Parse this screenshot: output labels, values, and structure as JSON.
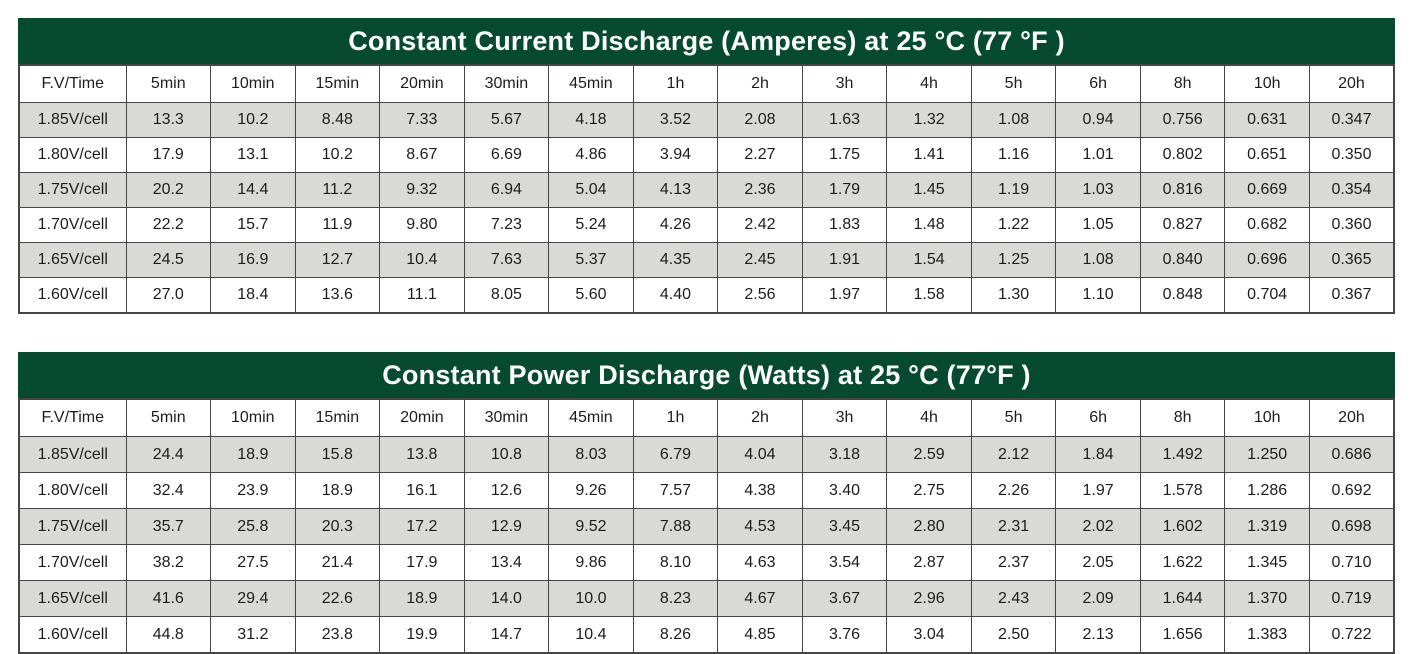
{
  "colors": {
    "header_green": "#064a2f",
    "title_text": "#ffffff",
    "stripe_gray": "#d9d9d5",
    "border": "#454545",
    "cell_text": "#1c1c1c"
  },
  "tables": [
    {
      "title": "Constant Current Discharge (Amperes) at 25 °C (77 °F )",
      "columns": [
        "F.V/Time",
        "5min",
        "10min",
        "15min",
        "20min",
        "30min",
        "45min",
        "1h",
        "2h",
        "3h",
        "4h",
        "5h",
        "6h",
        "8h",
        "10h",
        "20h"
      ],
      "rows": [
        {
          "label": "1.85V/cell",
          "values": [
            "13.3",
            "10.2",
            "8.48",
            "7.33",
            "5.67",
            "4.18",
            "3.52",
            "2.08",
            "1.63",
            "1.32",
            "1.08",
            "0.94",
            "0.756",
            "0.631",
            "0.347"
          ]
        },
        {
          "label": "1.80V/cell",
          "values": [
            "17.9",
            "13.1",
            "10.2",
            "8.67",
            "6.69",
            "4.86",
            "3.94",
            "2.27",
            "1.75",
            "1.41",
            "1.16",
            "1.01",
            "0.802",
            "0.651",
            "0.350"
          ]
        },
        {
          "label": "1.75V/cell",
          "values": [
            "20.2",
            "14.4",
            "11.2",
            "9.32",
            "6.94",
            "5.04",
            "4.13",
            "2.36",
            "1.79",
            "1.45",
            "1.19",
            "1.03",
            "0.816",
            "0.669",
            "0.354"
          ]
        },
        {
          "label": "1.70V/cell",
          "values": [
            "22.2",
            "15.7",
            "11.9",
            "9.80",
            "7.23",
            "5.24",
            "4.26",
            "2.42",
            "1.83",
            "1.48",
            "1.22",
            "1.05",
            "0.827",
            "0.682",
            "0.360"
          ]
        },
        {
          "label": "1.65V/cell",
          "values": [
            "24.5",
            "16.9",
            "12.7",
            "10.4",
            "7.63",
            "5.37",
            "4.35",
            "2.45",
            "1.91",
            "1.54",
            "1.25",
            "1.08",
            "0.840",
            "0.696",
            "0.365"
          ]
        },
        {
          "label": "1.60V/cell",
          "values": [
            "27.0",
            "18.4",
            "13.6",
            "11.1",
            "8.05",
            "5.60",
            "4.40",
            "2.56",
            "1.97",
            "1.58",
            "1.30",
            "1.10",
            "0.848",
            "0.704",
            "0.367"
          ]
        }
      ]
    },
    {
      "title": "Constant Power Discharge (Watts) at 25 °C (77°F )",
      "columns": [
        "F.V/Time",
        "5min",
        "10min",
        "15min",
        "20min",
        "30min",
        "45min",
        "1h",
        "2h",
        "3h",
        "4h",
        "5h",
        "6h",
        "8h",
        "10h",
        "20h"
      ],
      "rows": [
        {
          "label": "1.85V/cell",
          "values": [
            "24.4",
            "18.9",
            "15.8",
            "13.8",
            "10.8",
            "8.03",
            "6.79",
            "4.04",
            "3.18",
            "2.59",
            "2.12",
            "1.84",
            "1.492",
            "1.250",
            "0.686"
          ]
        },
        {
          "label": "1.80V/cell",
          "values": [
            "32.4",
            "23.9",
            "18.9",
            "16.1",
            "12.6",
            "9.26",
            "7.57",
            "4.38",
            "3.40",
            "2.75",
            "2.26",
            "1.97",
            "1.578",
            "1.286",
            "0.692"
          ]
        },
        {
          "label": "1.75V/cell",
          "values": [
            "35.7",
            "25.8",
            "20.3",
            "17.2",
            "12.9",
            "9.52",
            "7.88",
            "4.53",
            "3.45",
            "2.80",
            "2.31",
            "2.02",
            "1.602",
            "1.319",
            "0.698"
          ]
        },
        {
          "label": "1.70V/cell",
          "values": [
            "38.2",
            "27.5",
            "21.4",
            "17.9",
            "13.4",
            "9.86",
            "8.10",
            "4.63",
            "3.54",
            "2.87",
            "2.37",
            "2.05",
            "1.622",
            "1.345",
            "0.710"
          ]
        },
        {
          "label": "1.65V/cell",
          "values": [
            "41.6",
            "29.4",
            "22.6",
            "18.9",
            "14.0",
            "10.0",
            "8.23",
            "4.67",
            "3.67",
            "2.96",
            "2.43",
            "2.09",
            "1.644",
            "1.370",
            "0.719"
          ]
        },
        {
          "label": "1.60V/cell",
          "values": [
            "44.8",
            "31.2",
            "23.8",
            "19.9",
            "14.7",
            "10.4",
            "8.26",
            "4.85",
            "3.76",
            "3.04",
            "2.50",
            "2.13",
            "1.656",
            "1.383",
            "0.722"
          ]
        }
      ]
    }
  ]
}
